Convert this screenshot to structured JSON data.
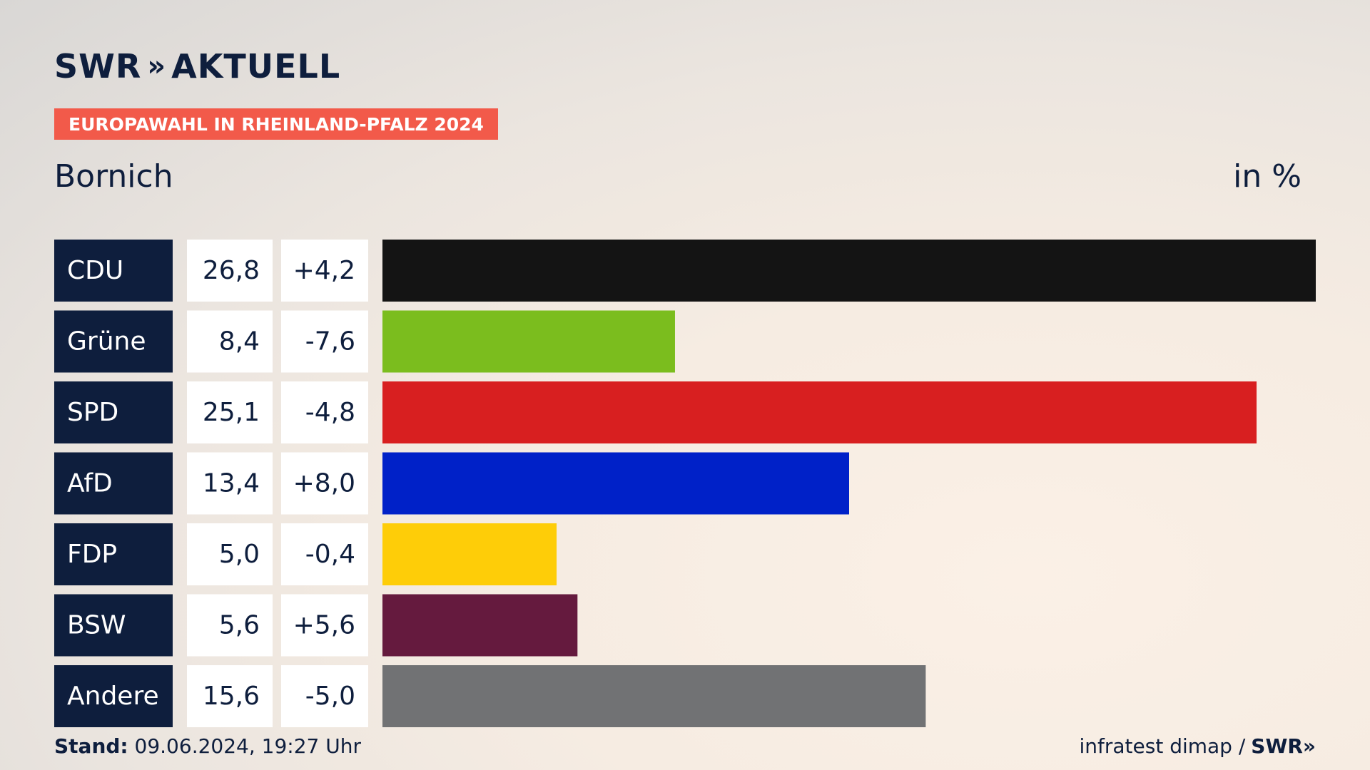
{
  "header": {
    "logo_text": "SWR",
    "logo_chevrons": "»",
    "logo_suffix": "AKTUELL",
    "banner": "EUROPAWAHL IN RHEINLAND-PFALZ 2024",
    "region": "Bornich",
    "unit": "in %"
  },
  "footer": {
    "stand_label": "Stand:",
    "stand_value": "09.06.2024, 19:27 Uhr",
    "source": "infratest dimap /",
    "source_logo": "SWR»"
  },
  "chart_data": {
    "type": "bar",
    "orientation": "horizontal",
    "categories": [
      "CDU",
      "Grüne",
      "SPD",
      "AfD",
      "FDP",
      "BSW",
      "Andere"
    ],
    "values": [
      26.8,
      8.4,
      25.1,
      13.4,
      5.0,
      5.6,
      15.6
    ],
    "value_labels": [
      "26,8",
      "8,4",
      "25,1",
      "13,4",
      "5,0",
      "5,6",
      "15,6"
    ],
    "changes": [
      "+4,2",
      "-7,6",
      "-4,8",
      "+8,0",
      "-0,4",
      "+5,6",
      "-5,0"
    ],
    "colors": [
      "#141414",
      "#7bbd1e",
      "#d81f20",
      "#0021c8",
      "#fecd08",
      "#651a3e",
      "#717274"
    ],
    "xlim": [
      0,
      26.8
    ],
    "grid": false,
    "legend": "none"
  }
}
